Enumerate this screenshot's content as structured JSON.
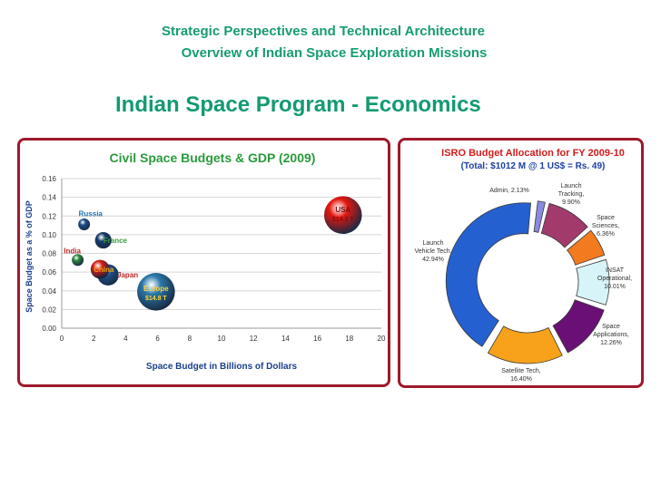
{
  "header": {
    "line1": "Strategic Perspectives and Technical Architecture",
    "line2": "Overview of Indian Space Exploration Missions",
    "title": "Indian Space Program - Economics"
  },
  "colors": {
    "heading": "#179c6f",
    "panel_border": "#a0192c",
    "chart_title": "#2a9a3c",
    "pie_title": "#d21c1c",
    "pie_subtitle": "#1b3fa0"
  },
  "chart_data": [
    {
      "type": "scatter",
      "title": "Civil Space Budgets & GDP (2009)",
      "xlabel": "Space Budget in Billions of Dollars",
      "ylabel": "Space Budget as a % of GDP",
      "xlim": [
        0,
        20
      ],
      "ylim": [
        0,
        0.16
      ],
      "xticks": [
        "0",
        "2",
        "4",
        "6",
        "8",
        "10",
        "12",
        "14",
        "16",
        "18",
        "20"
      ],
      "yticks": [
        "0.00",
        "0.02",
        "0.04",
        "0.06",
        "0.08",
        "0.10",
        "0.12",
        "0.14",
        "0.16"
      ],
      "points": [
        {
          "name": "Russia",
          "x": 1.4,
          "y": 0.111,
          "size": 1.0,
          "color": "#1f4e8c",
          "label": "Russia",
          "label_color": "#1f6fb0"
        },
        {
          "name": "France",
          "x": 2.6,
          "y": 0.094,
          "size": 1.4,
          "color": "#153a6b",
          "label": "France",
          "label_color": "#3b9a3b"
        },
        {
          "name": "India",
          "x": 1.0,
          "y": 0.073,
          "size": 1.0,
          "color": "#2e8b3a",
          "label": "India",
          "label_color": "#c0262a"
        },
        {
          "name": "Japan",
          "x": 2.9,
          "y": 0.057,
          "size": 1.8,
          "color": "#1f4e8c",
          "label": "Japan",
          "label_color": "#c0262a"
        },
        {
          "name": "China",
          "x": 2.4,
          "y": 0.063,
          "size": 1.6,
          "color": "#d61a14",
          "label": "China",
          "label_color": "#e7a80e"
        },
        {
          "name": "Europe",
          "x": 5.9,
          "y": 0.039,
          "size": 3.2,
          "color": "#2b78a8",
          "label": "Europe",
          "sublabel": "$14.8 T",
          "label_color": "#ffd23a"
        },
        {
          "name": "USA",
          "x": 17.6,
          "y": 0.121,
          "size": 3.2,
          "color": "#e5160e",
          "label": "USA",
          "sublabel": "$14.2 T",
          "label_color": "#7a1010"
        }
      ]
    },
    {
      "type": "pie",
      "title": "ISRO Budget Allocation for FY 2009-10",
      "subtitle": "(Total: $1012 M @ 1 US$ = Rs. 49)",
      "slices": [
        {
          "name": "Admin",
          "label": "Admin, 2.13%",
          "value": 2.13,
          "color": "#8a8ae0"
        },
        {
          "name": "Launch Tracking",
          "label": "Launch Tracking, 9.90%",
          "value": 9.9,
          "color": "#a23a6b"
        },
        {
          "name": "Space Sciences",
          "label": "Space Sciences, 6.36%",
          "value": 6.36,
          "color": "#f27a1f"
        },
        {
          "name": "INSAT Operational",
          "label": "INSAT Operational, 10.01%",
          "value": 10.01,
          "color": "#d7f4f8"
        },
        {
          "name": "Space Applications",
          "label": "Space Applications, 12.26%",
          "value": 12.26,
          "color": "#6a0f75"
        },
        {
          "name": "Satellite Tech",
          "label": "Satellite Tech, 16.40%",
          "value": 16.4,
          "color": "#f7a21a"
        },
        {
          "name": "Launch Vehicle Tech",
          "label": "Launch Vehicle Tech, 42.94%",
          "value": 42.94,
          "color": "#2460d0"
        }
      ]
    }
  ]
}
